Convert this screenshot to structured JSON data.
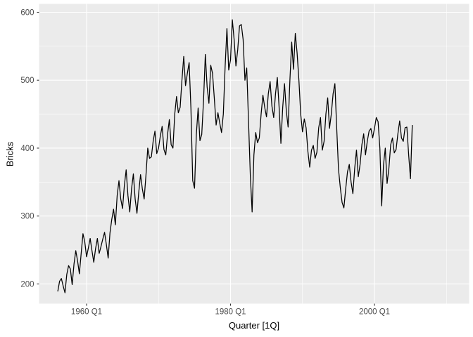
{
  "figure": {
    "background": "#ffffff",
    "panel_background": "#ebebeb",
    "grid_color": "#ffffff",
    "tick_color": "#333333",
    "tick_label_color": "#4d4d4d",
    "axis_title_color": "#000000",
    "line_color": "#000000"
  },
  "chart_data": {
    "type": "line",
    "title": "",
    "xlabel": "Quarter [1Q]",
    "ylabel": "Bricks",
    "legend": "none",
    "grid": "on",
    "x_start": 1956.0,
    "x_step": 0.25,
    "xlim": [
      1953.4,
      2013.15
    ],
    "ylim": [
      171,
      612.4
    ],
    "x_ticks": [
      {
        "value": 1960.0,
        "label": "1960 Q1"
      },
      {
        "value": 1980.0,
        "label": "1980 Q1"
      },
      {
        "value": 2000.0,
        "label": "2000 Q1"
      }
    ],
    "x_minor_ticks": [
      1970.0,
      1990.0,
      2010.0
    ],
    "y_ticks": [
      {
        "value": 200,
        "label": "200"
      },
      {
        "value": 300,
        "label": "300"
      },
      {
        "value": 400,
        "label": "400"
      },
      {
        "value": 500,
        "label": "500"
      },
      {
        "value": 600,
        "label": "600"
      }
    ],
    "y_minor_ticks": [
      250,
      350,
      450,
      550
    ],
    "series": [
      {
        "name": "Bricks",
        "values": [
          189,
          204,
          208,
          197,
          187,
          214,
          227,
          222,
          199,
          229,
          249,
          234,
          215,
          245,
          274,
          262,
          240,
          253,
          267,
          249,
          232,
          252,
          267,
          245,
          255,
          266,
          276,
          258,
          238,
          275,
          295,
          310,
          287,
          330,
          352,
          325,
          311,
          345,
          368,
          330,
          306,
          340,
          362,
          325,
          304,
          335,
          361,
          340,
          325,
          360,
          400,
          385,
          387,
          410,
          425,
          392,
          400,
          418,
          432,
          398,
          390,
          420,
          442,
          405,
          400,
          450,
          476,
          452,
          460,
          500,
          535,
          492,
          510,
          526,
          458,
          352,
          341,
          420,
          459,
          411,
          420,
          470,
          538,
          490,
          466,
          522,
          510,
          473,
          434,
          452,
          437,
          423,
          450,
          520,
          576,
          515,
          530,
          589,
          560,
          521,
          545,
          580,
          582,
          560,
          500,
          518,
          440,
          360,
          306,
          390,
          423,
          408,
          415,
          450,
          478,
          460,
          446,
          480,
          498,
          462,
          445,
          480,
          504,
          460,
          407,
          460,
          495,
          455,
          431,
          500,
          556,
          516,
          569,
          540,
          500,
          450,
          424,
          443,
          430,
          395,
          372,
          397,
          404,
          385,
          394,
          430,
          445,
          397,
          410,
          450,
          474,
          429,
          450,
          480,
          495,
          430,
          369,
          342,
          320,
          312,
          340,
          365,
          376,
          350,
          333,
          370,
          397,
          358,
          376,
          405,
          421,
          390,
          410,
          425,
          429,
          415,
          429,
          445,
          439,
          400,
          315,
          375,
          400,
          348,
          370,
          405,
          415,
          393,
          398,
          421,
          440,
          415,
          410,
          430,
          431,
          390,
          355,
          434
        ]
      }
    ]
  }
}
